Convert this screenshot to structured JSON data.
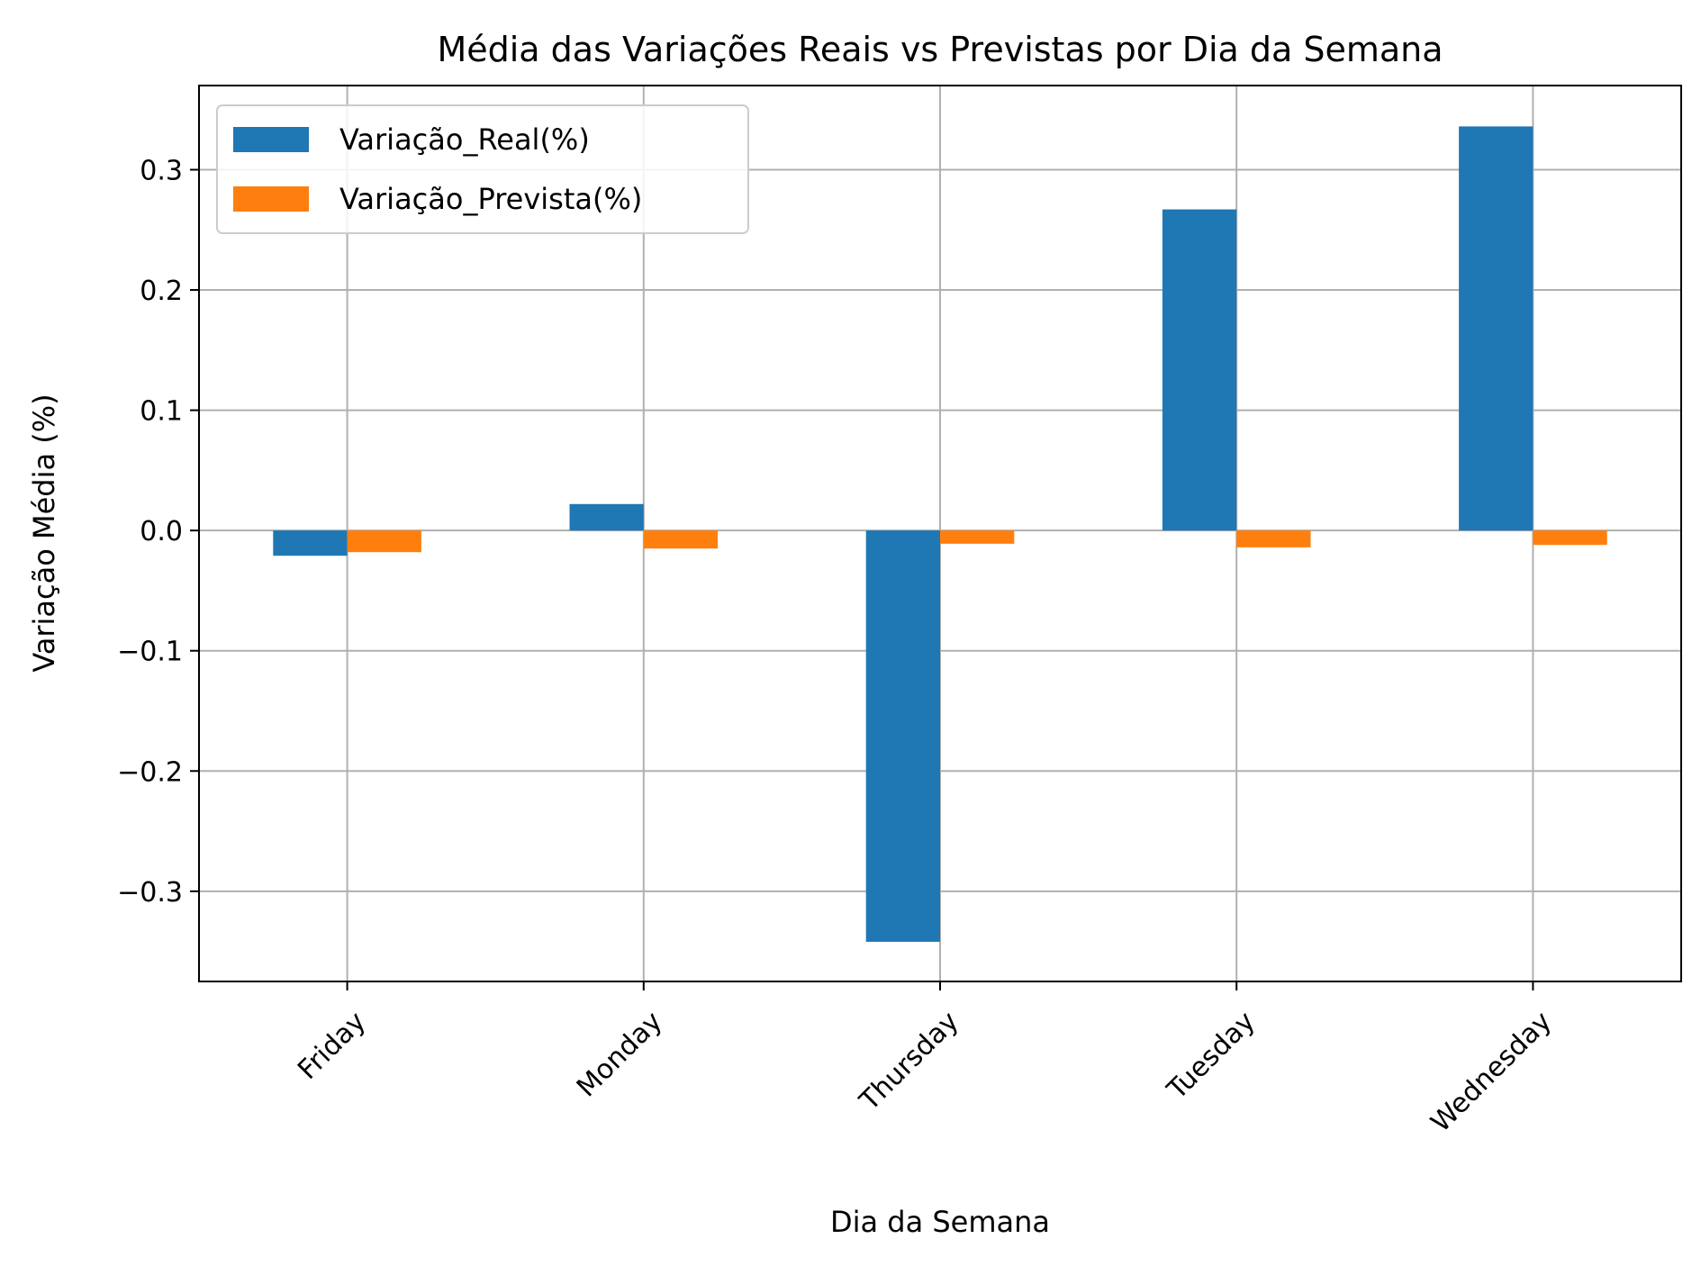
{
  "chart_data": {
    "type": "bar",
    "title": "Média das Variações Reais vs Previstas por Dia da Semana",
    "xlabel": "Dia da Semana",
    "ylabel": "Variação Média (%)",
    "categories": [
      "Friday",
      "Monday",
      "Thursday",
      "Tuesday",
      "Wednesday"
    ],
    "series": [
      {
        "name": "Variação_Real(%)",
        "color": "#1f77b4",
        "values": [
          -0.021,
          0.022,
          -0.342,
          0.267,
          0.336
        ]
      },
      {
        "name": "Variação_Prevista(%)",
        "color": "#ff7f0e",
        "values": [
          -0.018,
          -0.015,
          -0.011,
          -0.014,
          -0.012
        ]
      }
    ],
    "ylim": [
      -0.375,
      0.37
    ],
    "yticks": [
      -0.3,
      -0.2,
      -0.1,
      0.0,
      0.1,
      0.2,
      0.3
    ],
    "ytick_labels": [
      "−0.3",
      "−0.2",
      "−0.1",
      "0.0",
      "0.1",
      "0.2",
      "0.3"
    ],
    "grid": true,
    "legend_position": "top-left"
  }
}
